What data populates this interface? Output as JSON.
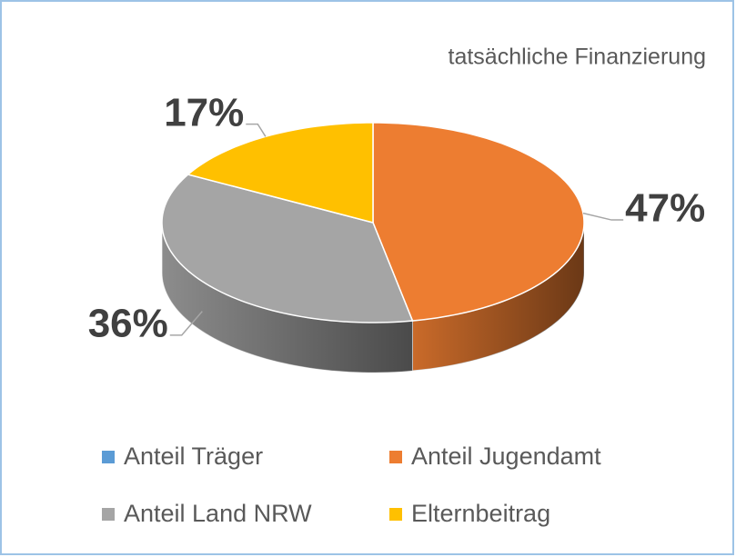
{
  "chart_data": {
    "type": "pie",
    "title": "tatsächliche Finanzierung",
    "categories": [
      "Anteil Träger",
      "Anteil Jugendamt",
      "Anteil Land NRW",
      "Elternbeitrag"
    ],
    "values": [
      0,
      47,
      36,
      17
    ],
    "value_labels": [
      null,
      "47%",
      "36%",
      "17%"
    ],
    "colors": [
      "#5b9bd5",
      "#ed7d31",
      "#a5a5a5",
      "#ffc000"
    ],
    "legend": "bottom"
  }
}
